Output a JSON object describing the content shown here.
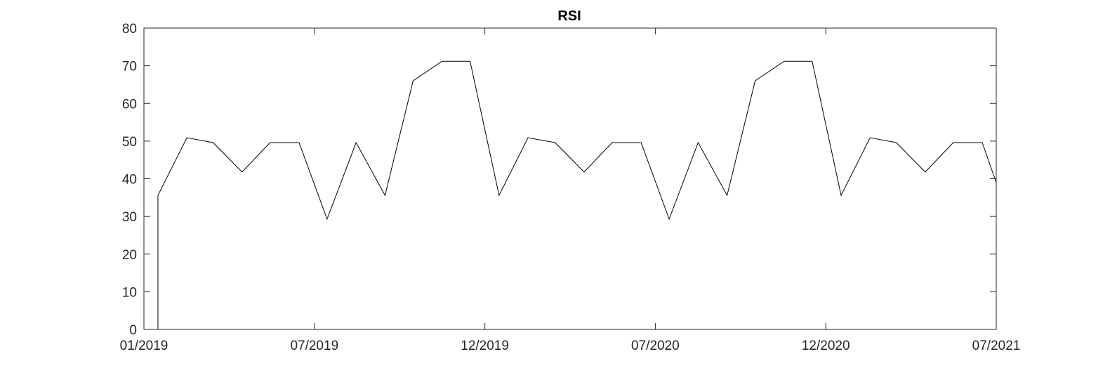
{
  "chart_data": {
    "type": "line",
    "title": "RSI",
    "xlabel": "",
    "ylabel": "",
    "x_ticks": [
      "01/2019",
      "07/2019",
      "12/2019",
      "07/2020",
      "12/2020",
      "07/2021"
    ],
    "y_ticks": [
      "0",
      "10",
      "20",
      "30",
      "40",
      "50",
      "60",
      "70",
      "80"
    ],
    "ylim": [
      0,
      80
    ],
    "grid": false,
    "legend": "none",
    "line_color": "#000000",
    "series": [
      {
        "x": [
          "2019-01-01",
          "2019-01-16",
          "2019-01-16",
          "2019-02-16",
          "2019-03-16",
          "2019-04-16",
          "2019-05-16",
          "2019-06-16",
          "2019-07-16",
          "2019-08-16",
          "2019-09-16",
          "2019-10-16",
          "2019-11-16",
          "2019-12-16",
          "2020-01-16",
          "2020-02-16",
          "2020-03-16",
          "2020-04-16",
          "2020-05-16",
          "2020-06-16",
          "2020-07-16",
          "2020-08-16",
          "2020-09-16",
          "2020-10-16",
          "2020-11-16",
          "2020-12-16",
          "2021-01-16",
          "2021-02-16",
          "2021-03-16",
          "2021-04-16",
          "2021-05-16",
          "2021-06-16",
          "2021-07-01"
        ],
        "values": [
          0,
          0,
          35.6,
          50.9,
          49.6,
          41.8,
          49.6,
          49.6,
          29.3,
          49.6,
          35.6,
          66.0,
          71.2,
          71.2,
          35.6,
          50.9,
          49.6,
          41.8,
          49.6,
          49.6,
          29.3,
          49.6,
          35.6,
          66.0,
          71.2,
          71.2,
          35.6,
          50.9,
          49.6,
          41.8,
          49.6,
          49.6,
          39.0
        ]
      }
    ]
  }
}
